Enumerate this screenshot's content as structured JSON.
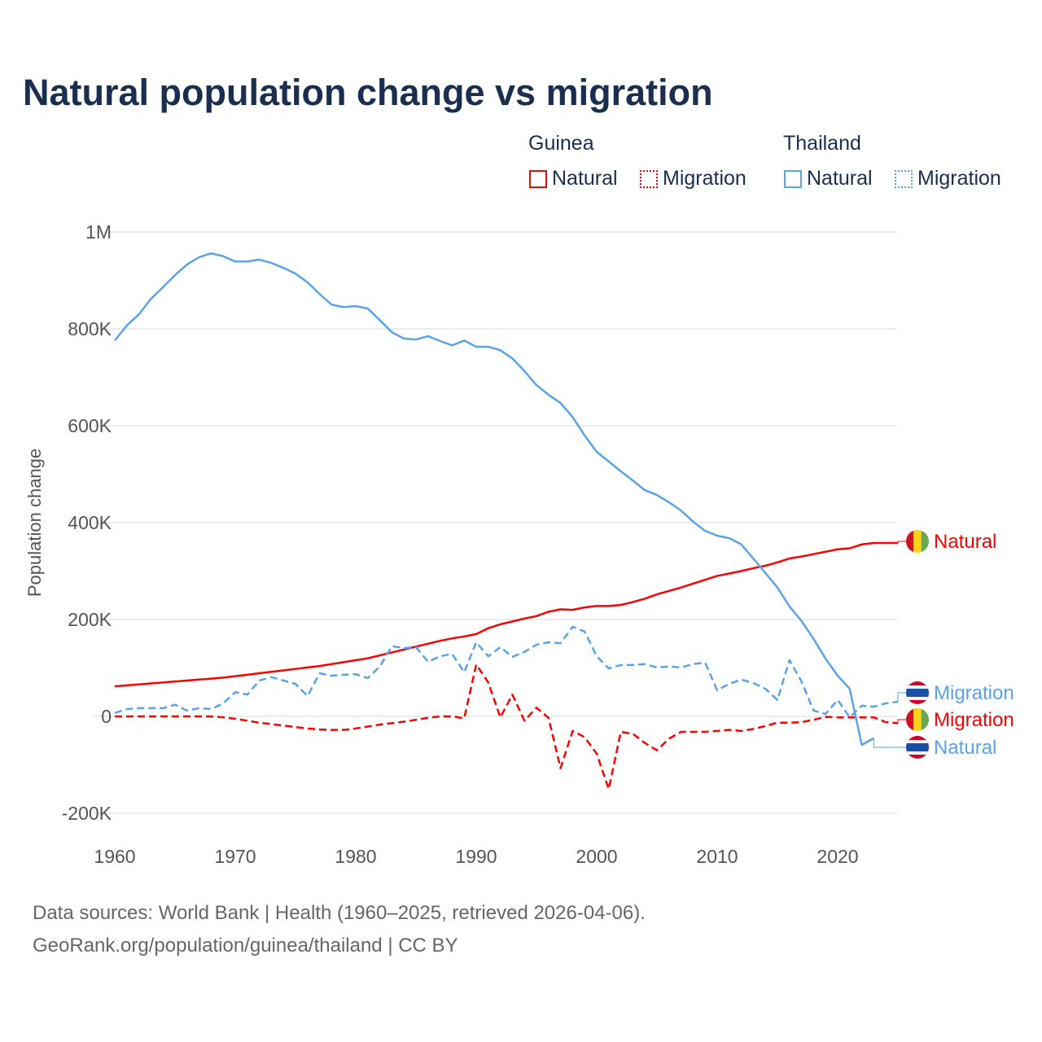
{
  "chart_data": {
    "type": "line",
    "title": "Natural population change vs migration",
    "xlabel": "",
    "ylabel": "Population change",
    "xlim": [
      1960,
      2025
    ],
    "ylim": [
      -200000,
      1000000
    ],
    "x_ticks": [
      "1960",
      "1970",
      "1980",
      "1990",
      "2000",
      "2010",
      "2020"
    ],
    "y_ticks": [
      {
        "v": 1000000,
        "label": "1M"
      },
      {
        "v": 800000,
        "label": "800K"
      },
      {
        "v": 600000,
        "label": "600K"
      },
      {
        "v": 400000,
        "label": "400K"
      },
      {
        "v": 200000,
        "label": "200K"
      },
      {
        "v": 0,
        "label": "0"
      },
      {
        "v": -200000,
        "label": "-200K"
      }
    ],
    "grid": true,
    "legend": {
      "placement": "top-right",
      "groups": [
        {
          "name": "Guinea",
          "items": [
            "Natural",
            "Migration"
          ]
        },
        {
          "name": "Thailand",
          "items": [
            "Natural",
            "Migration"
          ]
        }
      ]
    },
    "x": [
      1960,
      1961,
      1962,
      1963,
      1964,
      1965,
      1966,
      1967,
      1968,
      1969,
      1970,
      1971,
      1972,
      1973,
      1974,
      1975,
      1976,
      1977,
      1978,
      1979,
      1980,
      1981,
      1982,
      1983,
      1984,
      1985,
      1986,
      1987,
      1988,
      1989,
      1990,
      1991,
      1992,
      1993,
      1994,
      1995,
      1996,
      1997,
      1998,
      1999,
      2000,
      2001,
      2002,
      2003,
      2004,
      2005,
      2006,
      2007,
      2008,
      2009,
      2010,
      2011,
      2012,
      2013,
      2014,
      2015,
      2016,
      2017,
      2018,
      2019,
      2020,
      2021,
      2022,
      2023,
      2024,
      2025
    ],
    "series": [
      {
        "name": "Natural",
        "country": "Guinea",
        "color": "#ff0000",
        "dash": false,
        "end_label": "Natural",
        "values_k": [
          62,
          64,
          66,
          68,
          70,
          72,
          74,
          76,
          78,
          80,
          83,
          86,
          89,
          92,
          95,
          98,
          101,
          104,
          108,
          112,
          116,
          120,
          126,
          132,
          138,
          144,
          150,
          156,
          161,
          165,
          170,
          182,
          190,
          196,
          202,
          207,
          216,
          221,
          220,
          225,
          228,
          228,
          230,
          236,
          243,
          252,
          259,
          266,
          274,
          282,
          290,
          295,
          300,
          306,
          311,
          318,
          326,
          330,
          335,
          340,
          345,
          347,
          355,
          358,
          358,
          358
        ]
      },
      {
        "name": "Migration",
        "country": "Guinea",
        "color": "#ff0000",
        "dash": true,
        "end_label": "Migration",
        "values_k": [
          0,
          0,
          0,
          0,
          0,
          0,
          0,
          0,
          0,
          -2,
          -5,
          -9,
          -13,
          -16,
          -19,
          -22,
          -25,
          -27,
          -28,
          -28,
          -25,
          -21,
          -17,
          -14,
          -11,
          -7,
          -3,
          0,
          0,
          -4,
          107,
          70,
          -2,
          45,
          -9,
          18,
          -3,
          -107,
          -30,
          -43,
          -77,
          -150,
          -32,
          -36,
          -55,
          -70,
          -46,
          -32,
          -32,
          -32,
          -30,
          -28,
          -30,
          -26,
          -20,
          -13,
          -13,
          -12,
          -7,
          -1,
          -2,
          -2,
          -2,
          -2,
          -12,
          -14
        ]
      },
      {
        "name": "Natural",
        "country": "Thailand",
        "color": "#5ba3e8",
        "dash": false,
        "end_label": "Natural",
        "values_k": [
          776,
          807,
          830,
          862,
          886,
          911,
          933,
          948,
          956,
          950,
          939,
          939,
          943,
          936,
          926,
          914,
          896,
          872,
          850,
          845,
          847,
          842,
          818,
          793,
          780,
          778,
          785,
          775,
          766,
          776,
          763,
          763,
          756,
          739,
          713,
          684,
          664,
          647,
          618,
          580,
          546,
          526,
          506,
          487,
          467,
          457,
          442,
          425,
          402,
          383,
          373,
          368,
          355,
          326,
          296,
          266,
          227,
          197,
          160,
          119,
          84,
          57,
          -59,
          -45,
          null,
          null
        ]
      },
      {
        "name": "Migration",
        "country": "Thailand",
        "color": "#5ba3e8",
        "dash": true,
        "end_label": "Migration",
        "values_k": [
          7,
          15,
          17,
          17,
          17,
          24,
          12,
          17,
          15,
          27,
          50,
          45,
          74,
          81,
          74,
          67,
          42,
          89,
          84,
          86,
          87,
          79,
          103,
          145,
          141,
          143,
          113,
          124,
          129,
          91,
          153,
          124,
          143,
          123,
          133,
          148,
          153,
          151,
          185,
          175,
          124,
          99,
          106,
          106,
          108,
          101,
          103,
          101,
          108,
          111,
          54,
          67,
          76,
          69,
          57,
          34,
          116,
          72,
          12,
          5,
          34,
          -2,
          22,
          20,
          27,
          30
        ]
      }
    ]
  },
  "legend_labels": {
    "guinea": "Guinea",
    "thailand": "Thailand",
    "natural": "Natural",
    "migration": "Migration"
  },
  "footer": {
    "line1": "Data sources: World Bank | Health (1960–2025, retrieved 2026-04-06).",
    "line2": "GeoRank.org/population/guinea/thailand | CC BY"
  }
}
